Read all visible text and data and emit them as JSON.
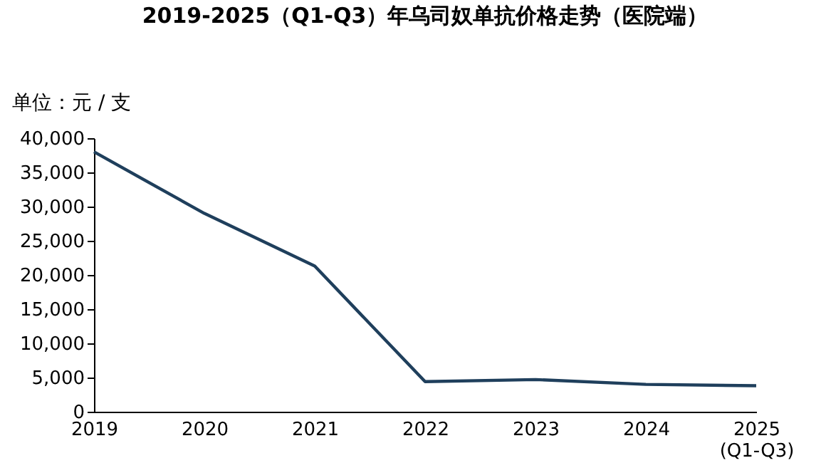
{
  "chart_data": {
    "type": "line",
    "title": "2019-2025（Q1-Q3）年乌司奴单抗价格走势（医院端）",
    "subtitle": "单位：元 / 支",
    "categories": [
      "2019",
      "2020",
      "2021",
      "2022",
      "2023",
      "2024",
      "2025\n(Q1-Q3)"
    ],
    "series": [
      {
        "color": "#1f3f5c",
        "values": [
          38000,
          29000,
          21300,
          4400,
          4700,
          4000,
          3800
        ]
      }
    ],
    "ylim": [
      0,
      40000
    ],
    "yticks": [
      0,
      {
        "value": 5000,
        "label": "5,000"
      },
      {
        "value": 10000,
        "label": "10,000"
      },
      {
        "value": 15000,
        "label": "15,000"
      },
      {
        "value": 20000,
        "label": "20,000"
      },
      {
        "value": 25000,
        "label": "25,000"
      },
      {
        "value": 30000,
        "label": "30,000"
      },
      {
        "value": 35000,
        "label": "35,000"
      },
      {
        "value": 40000,
        "label": "40,000"
      }
    ],
    "grid": false,
    "legend": false,
    "marker": "none",
    "line_style": "solid"
  }
}
